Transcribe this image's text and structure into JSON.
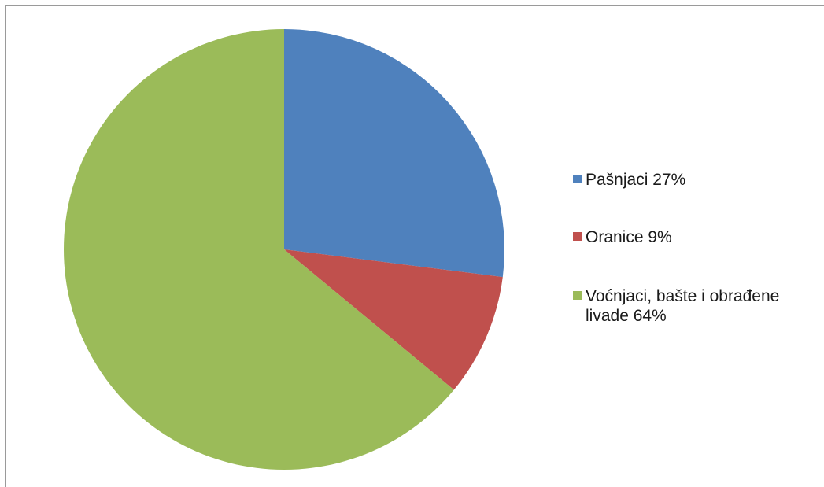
{
  "chart_data": {
    "type": "pie",
    "title": "",
    "start_angle_deg": 0,
    "direction": "clockwise",
    "legend_position": "right",
    "slices": [
      {
        "label": "Pašnjaci 27%",
        "value": 27,
        "color": "#4f81bd"
      },
      {
        "label": "Oranice 9%",
        "value": 9,
        "color": "#c0504d"
      },
      {
        "label": "Voćnjaci, bašte i obrađene livade 64%",
        "value": 64,
        "color": "#9bbb59"
      }
    ]
  }
}
